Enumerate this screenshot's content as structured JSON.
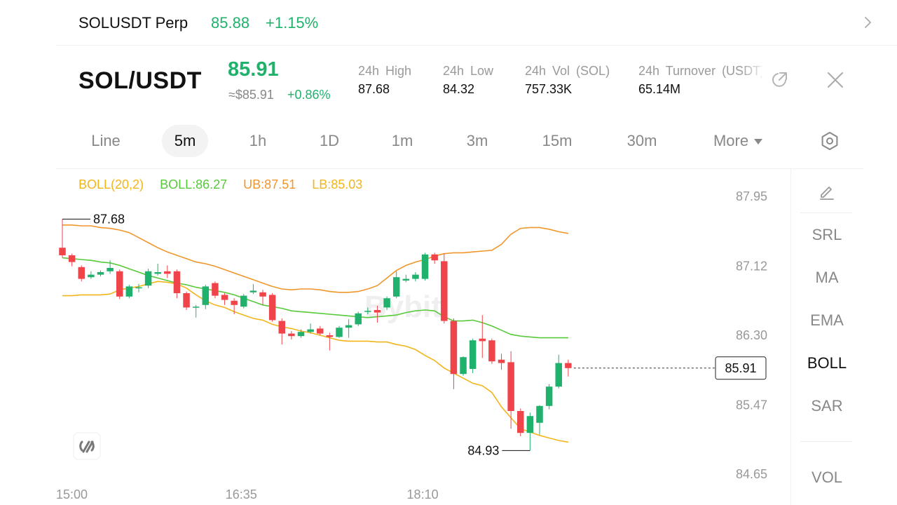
{
  "ticker_bar": {
    "symbol": "SOLUSDT Perp",
    "price": "85.88",
    "change": "+1.15%"
  },
  "header": {
    "pair": "SOL/USDT",
    "last_price": "85.91",
    "approx_price": "≈$85.91",
    "approx_change": "+0.86%",
    "stats": [
      {
        "label": "24h High",
        "value": "87.68"
      },
      {
        "label": "24h Low",
        "value": "84.32"
      },
      {
        "label": "24h Vol (SOL)",
        "value": "757.33K"
      },
      {
        "label": "24h Turnover (USDT)",
        "value": "65.14M"
      }
    ]
  },
  "tabs": [
    {
      "label": "Line"
    },
    {
      "label": "5m",
      "active": true
    },
    {
      "label": "1h"
    },
    {
      "label": "1D"
    },
    {
      "label": "1m"
    },
    {
      "label": "3m"
    },
    {
      "label": "15m"
    },
    {
      "label": "30m"
    },
    {
      "label": "More"
    }
  ],
  "legend": {
    "boll": "BOLL(20,2)",
    "mid": "BOLL:86.27",
    "ub": "UB:87.51",
    "lb": "LB:85.03"
  },
  "colors": {
    "up": "#20b26c",
    "down": "#ef454a",
    "boll_mid": "#57c93a",
    "boll_ub": "#f0962b",
    "boll_lb": "#f2b61b",
    "legend_boll": "#f2b61b"
  },
  "indicators": [
    {
      "label": "SRL"
    },
    {
      "label": "MA"
    },
    {
      "label": "EMA"
    },
    {
      "label": "BOLL",
      "active": true
    },
    {
      "label": "SAR"
    },
    {
      "label": "VOL"
    }
  ],
  "icons": {
    "chevron": "chevron-right-icon",
    "share": "share-icon",
    "close": "close-icon",
    "settings": "settings-hexagon-icon",
    "draw": "pencil-icon",
    "watermark": "brand-logo-icon"
  },
  "chart_data": {
    "type": "candlestick",
    "interval": "5m",
    "y_ticks": [
      "87.95",
      "87.12",
      "86.30",
      "85.47",
      "84.65"
    ],
    "x_ticks": [
      "15:00",
      "16:35",
      "18:10"
    ],
    "ylim": [
      84.65,
      87.95
    ],
    "high_marker": "87.68",
    "low_marker": "84.93",
    "last_price_label": "85.91",
    "candles": [
      {
        "o": 87.34,
        "c": 87.25,
        "h": 87.68,
        "l": 87.22
      },
      {
        "o": 87.25,
        "c": 87.17,
        "h": 87.27,
        "l": 87.12
      },
      {
        "o": 87.11,
        "c": 86.97,
        "h": 87.13,
        "l": 86.94
      },
      {
        "o": 86.99,
        "c": 87.02,
        "h": 87.06,
        "l": 86.97
      },
      {
        "o": 87.02,
        "c": 87.05,
        "h": 87.07,
        "l": 87.0
      },
      {
        "o": 87.06,
        "c": 87.1,
        "h": 87.19,
        "l": 87.03
      },
      {
        "o": 87.06,
        "c": 86.76,
        "h": 87.08,
        "l": 86.73
      },
      {
        "o": 86.76,
        "c": 86.88,
        "h": 86.9,
        "l": 86.74
      },
      {
        "o": 86.86,
        "c": 86.87,
        "h": 86.91,
        "l": 86.81
      },
      {
        "o": 86.89,
        "c": 87.06,
        "h": 87.09,
        "l": 86.86
      },
      {
        "o": 87.03,
        "c": 87.05,
        "h": 87.15,
        "l": 87.01
      },
      {
        "o": 87.06,
        "c": 87.03,
        "h": 87.13,
        "l": 86.98
      },
      {
        "o": 87.06,
        "c": 86.8,
        "h": 87.08,
        "l": 86.74
      },
      {
        "o": 86.8,
        "c": 86.63,
        "h": 86.82,
        "l": 86.6
      },
      {
        "o": 86.63,
        "c": 86.64,
        "h": 86.66,
        "l": 86.51
      },
      {
        "o": 86.66,
        "c": 86.88,
        "h": 86.9,
        "l": 86.61
      },
      {
        "o": 86.92,
        "c": 86.77,
        "h": 86.94,
        "l": 86.74
      },
      {
        "o": 86.78,
        "c": 86.72,
        "h": 86.8,
        "l": 86.66
      },
      {
        "o": 86.71,
        "c": 86.66,
        "h": 86.74,
        "l": 86.55
      },
      {
        "o": 86.64,
        "c": 86.77,
        "h": 86.79,
        "l": 86.62
      },
      {
        "o": 86.81,
        "c": 86.83,
        "h": 86.91,
        "l": 86.79
      },
      {
        "o": 86.81,
        "c": 86.76,
        "h": 86.84,
        "l": 86.66
      },
      {
        "o": 86.78,
        "c": 86.48,
        "h": 86.8,
        "l": 86.46
      },
      {
        "o": 86.47,
        "c": 86.32,
        "h": 86.5,
        "l": 86.19
      },
      {
        "o": 86.32,
        "c": 86.29,
        "h": 86.35,
        "l": 86.25
      },
      {
        "o": 86.29,
        "c": 86.34,
        "h": 86.37,
        "l": 86.27
      },
      {
        "o": 86.34,
        "c": 86.37,
        "h": 86.44,
        "l": 86.32
      },
      {
        "o": 86.38,
        "c": 86.32,
        "h": 86.41,
        "l": 86.3
      },
      {
        "o": 86.3,
        "c": 86.28,
        "h": 86.33,
        "l": 86.12
      },
      {
        "o": 86.28,
        "c": 86.39,
        "h": 86.41,
        "l": 86.27
      },
      {
        "o": 86.39,
        "c": 86.42,
        "h": 86.49,
        "l": 86.27
      },
      {
        "o": 86.43,
        "c": 86.56,
        "h": 86.58,
        "l": 86.41
      },
      {
        "o": 86.58,
        "c": 86.59,
        "h": 86.63,
        "l": 86.55
      },
      {
        "o": 86.6,
        "c": 86.57,
        "h": 86.65,
        "l": 86.45
      },
      {
        "o": 86.63,
        "c": 86.74,
        "h": 86.76,
        "l": 86.6
      },
      {
        "o": 86.76,
        "c": 86.99,
        "h": 87.06,
        "l": 86.74
      },
      {
        "o": 86.95,
        "c": 86.97,
        "h": 87.02,
        "l": 86.93
      },
      {
        "o": 86.97,
        "c": 87.02,
        "h": 87.05,
        "l": 86.94
      },
      {
        "o": 86.97,
        "c": 87.26,
        "h": 87.28,
        "l": 86.95
      },
      {
        "o": 87.26,
        "c": 87.19,
        "h": 87.28,
        "l": 87.15
      },
      {
        "o": 87.18,
        "c": 86.47,
        "h": 87.27,
        "l": 86.44
      },
      {
        "o": 86.47,
        "c": 85.84,
        "h": 86.5,
        "l": 85.66
      },
      {
        "o": 85.84,
        "c": 86.04,
        "h": 86.05,
        "l": 85.82
      },
      {
        "o": 85.9,
        "c": 86.24,
        "h": 86.26,
        "l": 85.85
      },
      {
        "o": 86.26,
        "c": 86.23,
        "h": 86.54,
        "l": 86.03
      },
      {
        "o": 86.24,
        "c": 85.99,
        "h": 86.26,
        "l": 85.96
      },
      {
        "o": 86.01,
        "c": 85.97,
        "h": 86.08,
        "l": 85.89
      },
      {
        "o": 85.98,
        "c": 85.4,
        "h": 86.11,
        "l": 85.19
      },
      {
        "o": 85.4,
        "c": 85.14,
        "h": 85.43,
        "l": 85.1
      },
      {
        "o": 85.14,
        "c": 85.34,
        "h": 85.38,
        "l": 84.93
      },
      {
        "o": 85.26,
        "c": 85.46,
        "h": 85.47,
        "l": 85.12
      },
      {
        "o": 85.46,
        "c": 85.69,
        "h": 85.72,
        "l": 85.42
      },
      {
        "o": 85.69,
        "c": 85.97,
        "h": 86.07,
        "l": 85.67
      },
      {
        "o": 85.97,
        "c": 85.91,
        "h": 86.01,
        "l": 85.81
      }
    ],
    "boll_mid": [
      87.22,
      87.21,
      87.2,
      87.19,
      87.17,
      87.16,
      87.13,
      87.09,
      87.05,
      87.01,
      86.98,
      86.95,
      86.92,
      86.9,
      86.87,
      86.85,
      86.83,
      86.81,
      86.78,
      86.74,
      86.7,
      86.66,
      86.64,
      86.62,
      86.59,
      86.58,
      86.57,
      86.56,
      86.55,
      86.54,
      86.53,
      86.52,
      86.51,
      86.52,
      86.53,
      86.54,
      86.57,
      86.59,
      86.6,
      86.59,
      86.52,
      86.47,
      86.47,
      86.48,
      86.45,
      86.41,
      86.36,
      86.31,
      86.29,
      86.28,
      86.27,
      86.27,
      86.27,
      86.27
    ],
    "boll_ub": [
      87.61,
      87.61,
      87.6,
      87.6,
      87.58,
      87.57,
      87.55,
      87.52,
      87.46,
      87.4,
      87.34,
      87.29,
      87.25,
      87.21,
      87.17,
      87.15,
      87.12,
      87.08,
      87.04,
      87.0,
      86.96,
      86.92,
      86.88,
      86.85,
      86.84,
      86.85,
      86.85,
      86.84,
      86.82,
      86.81,
      86.81,
      86.82,
      86.85,
      86.89,
      86.98,
      87.07,
      87.13,
      87.17,
      87.2,
      87.24,
      87.27,
      87.28,
      87.28,
      87.29,
      87.3,
      87.31,
      87.38,
      87.5,
      87.57,
      87.58,
      87.58,
      87.56,
      87.53,
      87.51
    ],
    "boll_lb": [
      86.77,
      86.77,
      86.78,
      86.78,
      86.78,
      86.79,
      86.84,
      86.86,
      86.88,
      86.91,
      86.94,
      86.93,
      86.91,
      86.86,
      86.78,
      86.71,
      86.66,
      86.63,
      86.58,
      86.54,
      86.5,
      86.48,
      86.43,
      86.4,
      86.38,
      86.35,
      86.33,
      86.3,
      86.27,
      86.24,
      86.23,
      86.23,
      86.23,
      86.22,
      86.22,
      86.19,
      86.17,
      86.13,
      86.06,
      86.0,
      85.91,
      85.85,
      85.79,
      85.73,
      85.7,
      85.62,
      85.45,
      85.32,
      85.19,
      85.15,
      85.11,
      85.08,
      85.05,
      85.03
    ]
  }
}
